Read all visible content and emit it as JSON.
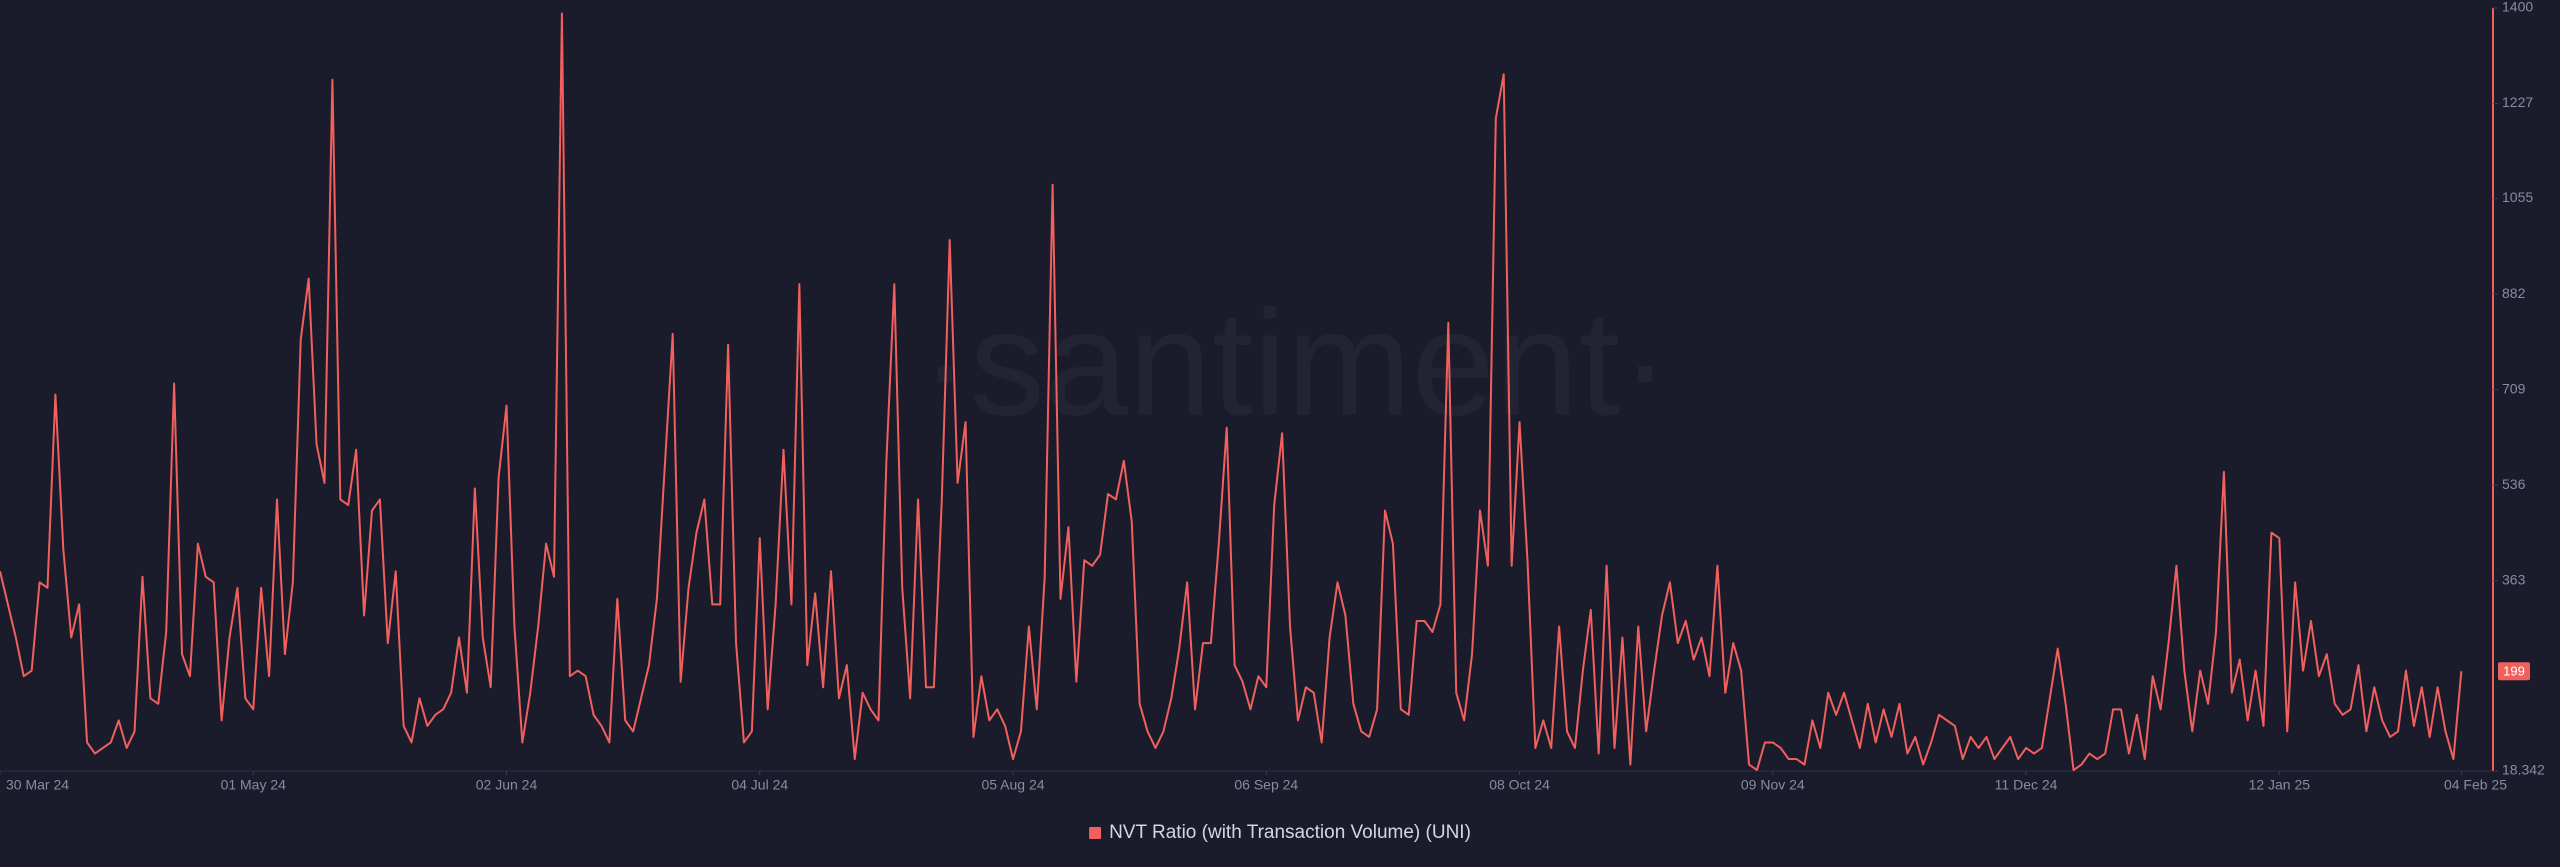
{
  "chart_data": {
    "type": "line",
    "watermark": "·santiment·",
    "x": [
      "2024-03-30",
      "2024-03-31",
      "2024-04-01",
      "2024-04-02",
      "2024-04-03",
      "2024-04-04",
      "2024-04-05",
      "2024-04-06",
      "2024-04-07",
      "2024-04-08",
      "2024-04-09",
      "2024-04-10",
      "2024-04-11",
      "2024-04-12",
      "2024-04-13",
      "2024-04-14",
      "2024-04-15",
      "2024-04-16",
      "2024-04-17",
      "2024-04-18",
      "2024-04-19",
      "2024-04-20",
      "2024-04-21",
      "2024-04-22",
      "2024-04-23",
      "2024-04-24",
      "2024-04-25",
      "2024-04-26",
      "2024-04-27",
      "2024-04-28",
      "2024-04-29",
      "2024-04-30",
      "2024-05-01",
      "2024-05-02",
      "2024-05-03",
      "2024-05-04",
      "2024-05-05",
      "2024-05-06",
      "2024-05-07",
      "2024-05-08",
      "2024-05-09",
      "2024-05-10",
      "2024-05-11",
      "2024-05-12",
      "2024-05-13",
      "2024-05-14",
      "2024-05-15",
      "2024-05-16",
      "2024-05-17",
      "2024-05-18",
      "2024-05-19",
      "2024-05-20",
      "2024-05-21",
      "2024-05-22",
      "2024-05-23",
      "2024-05-24",
      "2024-05-25",
      "2024-05-26",
      "2024-05-27",
      "2024-05-28",
      "2024-05-29",
      "2024-05-30",
      "2024-05-31",
      "2024-06-01",
      "2024-06-02",
      "2024-06-03",
      "2024-06-04",
      "2024-06-05",
      "2024-06-06",
      "2024-06-07",
      "2024-06-08",
      "2024-06-09",
      "2024-06-10",
      "2024-06-11",
      "2024-06-12",
      "2024-06-13",
      "2024-06-14",
      "2024-06-15",
      "2024-06-16",
      "2024-06-17",
      "2024-06-18",
      "2024-06-19",
      "2024-06-20",
      "2024-06-21",
      "2024-06-22",
      "2024-06-23",
      "2024-06-24",
      "2024-06-25",
      "2024-06-26",
      "2024-06-27",
      "2024-06-28",
      "2024-06-29",
      "2024-06-30",
      "2024-07-01",
      "2024-07-02",
      "2024-07-03",
      "2024-07-04",
      "2024-07-05",
      "2024-07-06",
      "2024-07-07",
      "2024-07-08",
      "2024-07-09",
      "2024-07-10",
      "2024-07-11",
      "2024-07-12",
      "2024-07-13",
      "2024-07-14",
      "2024-07-15",
      "2024-07-16",
      "2024-07-17",
      "2024-07-18",
      "2024-07-19",
      "2024-07-20",
      "2024-07-21",
      "2024-07-22",
      "2024-07-23",
      "2024-07-24",
      "2024-07-25",
      "2024-07-26",
      "2024-07-27",
      "2024-07-28",
      "2024-07-29",
      "2024-07-30",
      "2024-07-31",
      "2024-08-01",
      "2024-08-02",
      "2024-08-03",
      "2024-08-04",
      "2024-08-05",
      "2024-08-06",
      "2024-08-07",
      "2024-08-08",
      "2024-08-09",
      "2024-08-10",
      "2024-08-11",
      "2024-08-12",
      "2024-08-13",
      "2024-08-14",
      "2024-08-15",
      "2024-08-16",
      "2024-08-17",
      "2024-08-18",
      "2024-08-19",
      "2024-08-20",
      "2024-08-21",
      "2024-08-22",
      "2024-08-23",
      "2024-08-24",
      "2024-08-25",
      "2024-08-26",
      "2024-08-27",
      "2024-08-28",
      "2024-08-29",
      "2024-08-30",
      "2024-08-31",
      "2024-09-01",
      "2024-09-02",
      "2024-09-03",
      "2024-09-04",
      "2024-09-05",
      "2024-09-06",
      "2024-09-07",
      "2024-09-08",
      "2024-09-09",
      "2024-09-10",
      "2024-09-11",
      "2024-09-12",
      "2024-09-13",
      "2024-09-14",
      "2024-09-15",
      "2024-09-16",
      "2024-09-17",
      "2024-09-18",
      "2024-09-19",
      "2024-09-20",
      "2024-09-21",
      "2024-09-22",
      "2024-09-23",
      "2024-09-24",
      "2024-09-25",
      "2024-09-26",
      "2024-09-27",
      "2024-09-28",
      "2024-09-29",
      "2024-09-30",
      "2024-10-01",
      "2024-10-02",
      "2024-10-03",
      "2024-10-04",
      "2024-10-05",
      "2024-10-06",
      "2024-10-07",
      "2024-10-08",
      "2024-10-09",
      "2024-10-10",
      "2024-10-11",
      "2024-10-12",
      "2024-10-13",
      "2024-10-14",
      "2024-10-15",
      "2024-10-16",
      "2024-10-17",
      "2024-10-18",
      "2024-10-19",
      "2024-10-20",
      "2024-10-21",
      "2024-10-22",
      "2024-10-23",
      "2024-10-24",
      "2024-10-25",
      "2024-10-26",
      "2024-10-27",
      "2024-10-28",
      "2024-10-29",
      "2024-10-30",
      "2024-10-31",
      "2024-11-01",
      "2024-11-02",
      "2024-11-03",
      "2024-11-04",
      "2024-11-05",
      "2024-11-06",
      "2024-11-07",
      "2024-11-08",
      "2024-11-09",
      "2024-11-10",
      "2024-11-11",
      "2024-11-12",
      "2024-11-13",
      "2024-11-14",
      "2024-11-15",
      "2024-11-16",
      "2024-11-17",
      "2024-11-18",
      "2024-11-19",
      "2024-11-20",
      "2024-11-21",
      "2024-11-22",
      "2024-11-23",
      "2024-11-24",
      "2024-11-25",
      "2024-11-26",
      "2024-11-27",
      "2024-11-28",
      "2024-11-29",
      "2024-11-30",
      "2024-12-01",
      "2024-12-02",
      "2024-12-03",
      "2024-12-04",
      "2024-12-05",
      "2024-12-06",
      "2024-12-07",
      "2024-12-08",
      "2024-12-09",
      "2024-12-10",
      "2024-12-11",
      "2024-12-12",
      "2024-12-13",
      "2024-12-14",
      "2024-12-15",
      "2024-12-16",
      "2024-12-17",
      "2024-12-18",
      "2024-12-19",
      "2024-12-20",
      "2024-12-21",
      "2024-12-22",
      "2024-12-23",
      "2024-12-24",
      "2024-12-25",
      "2024-12-26",
      "2024-12-27",
      "2024-12-28",
      "2024-12-29",
      "2024-12-30",
      "2024-12-31",
      "2025-01-01",
      "2025-01-02",
      "2025-01-03",
      "2025-01-04",
      "2025-01-05",
      "2025-01-06",
      "2025-01-07",
      "2025-01-08",
      "2025-01-09",
      "2025-01-10",
      "2025-01-11",
      "2025-01-12",
      "2025-01-13",
      "2025-01-14",
      "2025-01-15",
      "2025-01-16",
      "2025-01-17",
      "2025-01-18",
      "2025-01-19",
      "2025-01-20",
      "2025-01-21",
      "2025-01-22",
      "2025-01-23",
      "2025-01-24",
      "2025-01-25",
      "2025-01-26",
      "2025-01-27",
      "2025-01-28",
      "2025-01-29",
      "2025-01-30",
      "2025-01-31",
      "2025-02-01",
      "2025-02-02",
      "2025-02-03",
      "2025-02-04"
    ],
    "series": [
      {
        "name": "NVT Ratio (with Transaction Volume) (UNI)",
        "color": "#f0605d",
        "values": [
          380,
          320,
          260,
          190,
          200,
          360,
          350,
          700,
          420,
          260,
          320,
          70,
          50,
          60,
          70,
          110,
          60,
          90,
          370,
          150,
          140,
          270,
          720,
          230,
          190,
          430,
          370,
          360,
          110,
          260,
          350,
          150,
          130,
          350,
          190,
          510,
          230,
          360,
          800,
          910,
          610,
          540,
          1270,
          510,
          500,
          600,
          300,
          490,
          510,
          250,
          380,
          100,
          70,
          150,
          100,
          120,
          130,
          160,
          260,
          160,
          530,
          260,
          170,
          550,
          680,
          280,
          70,
          160,
          280,
          430,
          370,
          1390,
          190,
          200,
          190,
          120,
          100,
          70,
          330,
          110,
          90,
          150,
          210,
          330,
          570,
          810,
          180,
          350,
          450,
          510,
          320,
          320,
          790,
          250,
          70,
          90,
          440,
          130,
          320,
          600,
          320,
          900,
          210,
          340,
          170,
          380,
          150,
          210,
          40,
          160,
          130,
          110,
          580,
          900,
          350,
          150,
          510,
          170,
          170,
          510,
          980,
          540,
          650,
          80,
          190,
          110,
          130,
          100,
          40,
          90,
          280,
          130,
          370,
          1080,
          330,
          460,
          180,
          400,
          390,
          410,
          520,
          510,
          580,
          470,
          140,
          90,
          60,
          90,
          150,
          240,
          360,
          130,
          250,
          250,
          430,
          640,
          210,
          180,
          130,
          190,
          170,
          500,
          630,
          280,
          110,
          170,
          160,
          70,
          260,
          360,
          300,
          140,
          90,
          80,
          130,
          490,
          430,
          130,
          120,
          290,
          290,
          270,
          320,
          830,
          160,
          110,
          230,
          490,
          390,
          1200,
          1280,
          390,
          650,
          400,
          60,
          110,
          60,
          280,
          90,
          60,
          200,
          310,
          50,
          390,
          60,
          260,
          30,
          280,
          90,
          200,
          300,
          360,
          250,
          290,
          220,
          260,
          190,
          390,
          160,
          250,
          200,
          30,
          20,
          70,
          70,
          60,
          40,
          40,
          30,
          110,
          60,
          160,
          120,
          160,
          110,
          60,
          140,
          70,
          130,
          80,
          140,
          50,
          80,
          30,
          70,
          120,
          110,
          100,
          40,
          80,
          60,
          80,
          40,
          60,
          80,
          40,
          60,
          50,
          60,
          150,
          240,
          140,
          20,
          30,
          50,
          40,
          50,
          130,
          130,
          50,
          120,
          40,
          190,
          130,
          250,
          390,
          200,
          90,
          200,
          140,
          270,
          560,
          160,
          220,
          110,
          200,
          100,
          450,
          440,
          90,
          360,
          200,
          290,
          190,
          230,
          140,
          120,
          130,
          210,
          90,
          170,
          110,
          80,
          90,
          200,
          100,
          170,
          80,
          170,
          90,
          40,
          199
        ]
      }
    ],
    "xlim": [
      "2024-03-30",
      "2025-02-08"
    ],
    "xticks": [
      {
        "value": "2024-03-30",
        "label": "30 Mar 24"
      },
      {
        "value": "2024-05-01",
        "label": "01 May 24"
      },
      {
        "value": "2024-06-02",
        "label": "02 Jun 24"
      },
      {
        "value": "2024-07-04",
        "label": "04 Jul 24"
      },
      {
        "value": "2024-08-05",
        "label": "05 Aug 24"
      },
      {
        "value": "2024-09-06",
        "label": "06 Sep 24"
      },
      {
        "value": "2024-10-08",
        "label": "08 Oct 24"
      },
      {
        "value": "2024-11-09",
        "label": "09 Nov 24"
      },
      {
        "value": "2024-12-11",
        "label": "11 Dec 24"
      },
      {
        "value": "2025-01-12",
        "label": "12 Jan 25"
      },
      {
        "value": "2025-02-04",
        "label": "04 Feb 25"
      }
    ],
    "ylim": [
      18.342,
      1400
    ],
    "yticks": [
      18.342,
      363,
      536,
      709,
      882,
      1055,
      1227,
      1400
    ],
    "grid": false,
    "legend": "bottom"
  }
}
